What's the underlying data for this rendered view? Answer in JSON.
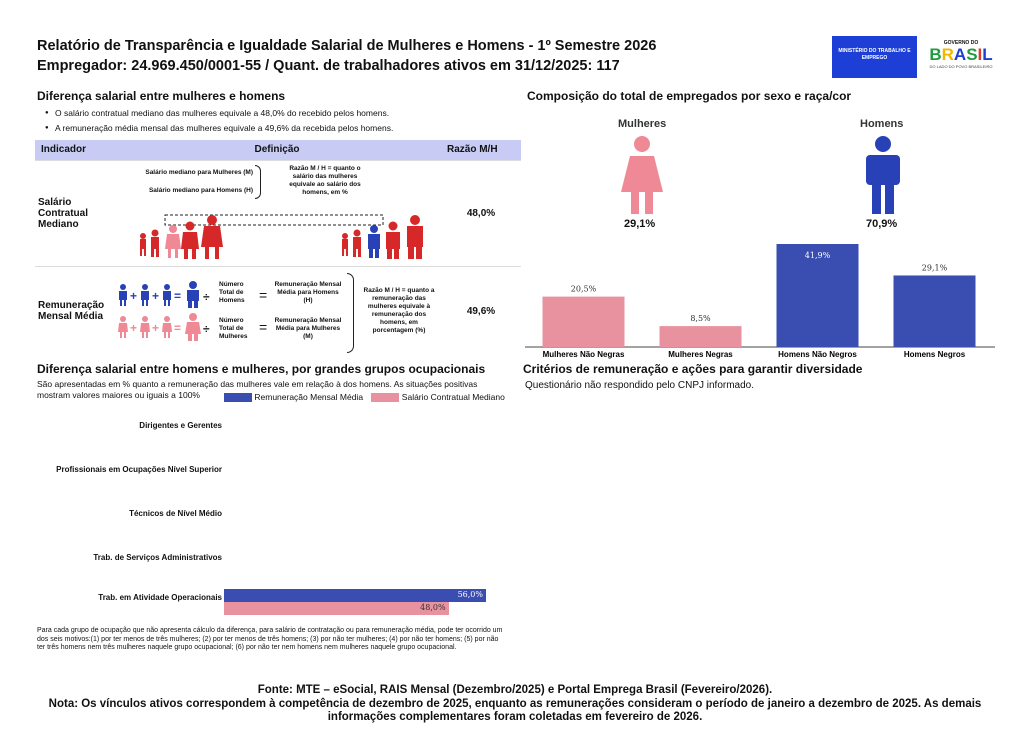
{
  "header": {
    "title": "Relatório de Transparência e Igualdade Salarial de Mulheres e Homens - 1º Semestre 2026",
    "employer": "Empregador: 24.969.450/0001-55 / Quant. de trabalhadores ativos em 31/12/2025: 117",
    "logo_mte": "MINISTÉRIO DO TRABALHO E EMPREGO",
    "logo_gov_top": "GOVERNO DO",
    "logo_gov_main": "BRASIL",
    "logo_gov_bottom": "DO LADO DO POVO BRASILEIRO"
  },
  "salary_gap": {
    "title": "Diferença salarial entre mulheres e homens",
    "bullet1": "O salário contratual mediano das mulheres equivale a 48,0% do recebido pelos homens.",
    "bullet2": "A remuneração média mensal das mulheres equivale a 49,6% da recebida pelos homens.",
    "table_headers": [
      "Indicador",
      "Definição",
      "Razão M/H"
    ],
    "row1": {
      "indicator": "Salário Contratual Mediano",
      "def_women": "Salário mediano para Mulheres (M)",
      "def_men": "Salário mediano para Homens (H)",
      "ratio_note": "Razão M / H = quanto o salário das mulheres equivale ao salário dos homens, em %",
      "value": "48,0%"
    },
    "row2": {
      "indicator": "Remuneração Mensal Média",
      "num_men": "Número Total de Homens",
      "num_women": "Número Total de Mulheres",
      "rem_men": "Remuneração Mensal Média para Homens (H)",
      "rem_women": "Remuneração Mensal Média para Mulheres (M)",
      "ratio_note": "Razão M / H = quanto a remuneração das mulheres equivale à remuneração dos homens, em porcentagem (%)",
      "value": "49,6%"
    }
  },
  "composition": {
    "title": "Composição do total de empregados por sexo e raça/cor",
    "women_label": "Mulheres",
    "men_label": "Homens",
    "women_pct": "29,1%",
    "men_pct": "70,9%"
  },
  "colors": {
    "pink": "#e8919f",
    "blue": "#3a4db0",
    "women_icon": "#ef8995",
    "men_icon": "#2941b7",
    "red_fig": "#d62828"
  },
  "chart_data": [
    {
      "type": "bar",
      "categories": [
        "Mulheres Não Negras",
        "Mulheres Negras",
        "Homens Não Negros",
        "Homens Negros"
      ],
      "values": [
        20.5,
        8.5,
        41.9,
        29.1
      ],
      "value_labels": [
        "20,5%",
        "8,5%",
        "41,9%",
        "29,1%"
      ],
      "colors": [
        "#e8919f",
        "#e8919f",
        "#3a4db0",
        "#3a4db0"
      ]
    },
    {
      "type": "bar",
      "title": "Diferença salarial entre homens e mulheres, por grandes grupos ocupacionais",
      "subtitle": "São apresentadas em % quanto a remuneração das mulheres vale em relação à dos homens. As situações positivas mostram valores maiores ou iguais a 100%",
      "categories": [
        "Dirigentes e Gerentes",
        "Profissionais em Ocupações Nível Superior",
        "Técnicos de Nível Médio",
        "Trab. de Serviços Administrativos",
        "Trab. em Atividade Operacionais"
      ],
      "series": [
        {
          "name": "Remuneração Mensal Média",
          "values": [
            null,
            null,
            null,
            null,
            56.0
          ],
          "labels": [
            "",
            "",
            "",
            "",
            "56,0%"
          ],
          "color": "#3a4db0"
        },
        {
          "name": "Salário Contratual Mediano",
          "values": [
            null,
            null,
            null,
            null,
            48.0
          ],
          "labels": [
            "",
            "",
            "",
            "",
            "48,0%"
          ],
          "color": "#e8919f"
        }
      ],
      "xlim": [
        0,
        56
      ]
    }
  ],
  "occupational_note": "Para cada grupo de ocupação que não apresenta cálculo da diferença, para salário de contratação ou para remuneração média, pode ter ocorrido um dos seis motivos:(1) por ter menos de três mulheres; (2) por ter menos de três homens; (3) por não ter mulheres; (4) por não ter homens; (5) por não ter três homens nem três mulheres naquele grupo ocupacional; (6) por não ter nem homens nem mulheres naquele grupo ocupacional.",
  "criteria": {
    "title": "Critérios de remuneração e ações para garantir diversidade",
    "text": "Questionário não respondido pelo CNPJ informado."
  },
  "footer": {
    "source": "Fonte: MTE – eSocial, RAIS Mensal (Dezembro/2025) e Portal Emprega Brasil (Fevereiro/2026).",
    "note": "Nota: Os vínculos ativos correspondem à competência de dezembro de 2025, enquanto as remunerações consideram o período de janeiro a dezembro de 2025. As demais informações complementares foram coletadas em fevereiro de 2026."
  }
}
